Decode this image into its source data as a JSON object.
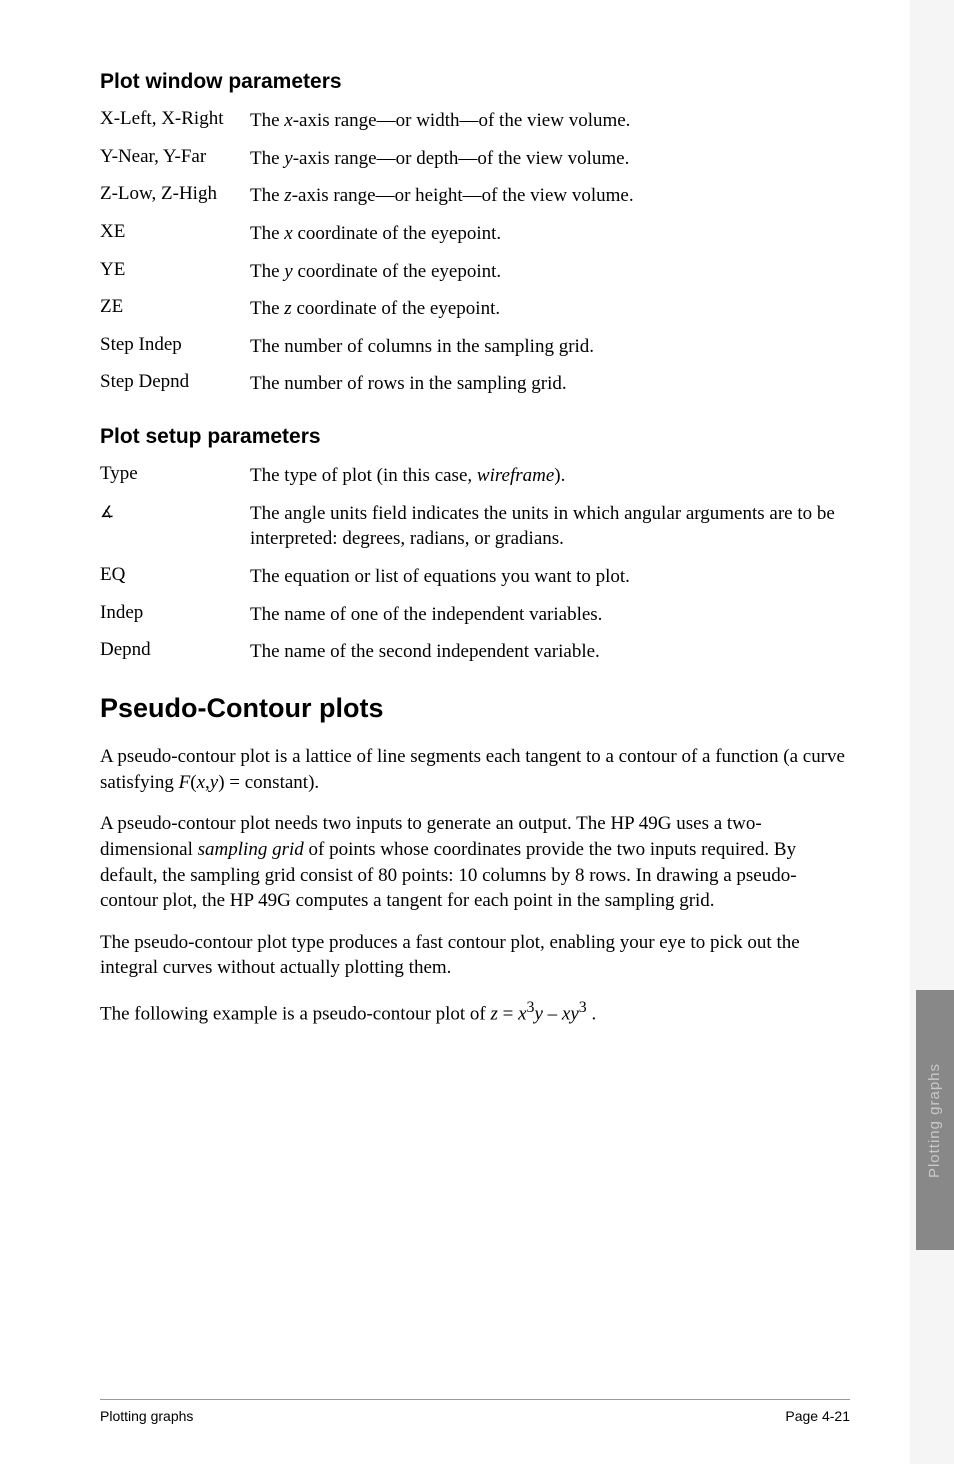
{
  "sections": {
    "plot_window": {
      "heading": "Plot window parameters",
      "items": [
        {
          "term_html": "X-Left, X-Right",
          "desc_html": "The <span class='ital'>x</span>-axis range—or width—of the view volume."
        },
        {
          "term_html": "Y-Near, Y-Far",
          "desc_html": "The <span class='ital'>y</span>-axis range—or depth—of the view volume."
        },
        {
          "term_html": "Z-Low, Z-High",
          "desc_html": "The <span class='ital'>z</span>-axis range—or height—of the view volume."
        },
        {
          "term_html": "XE",
          "desc_html": "The <span class='ital'>x</span> coordinate of the eyepoint."
        },
        {
          "term_html": "YE",
          "desc_html": "The <span class='ital'>y</span> coordinate of the eyepoint."
        },
        {
          "term_html": "ZE",
          "desc_html": "The <span class='ital'>z</span> coordinate of the eyepoint."
        },
        {
          "term_html": "Step Indep",
          "desc_html": "The number of columns in the sampling grid."
        },
        {
          "term_html": "Step Depnd",
          "desc_html": "The number of rows in the sampling grid."
        }
      ]
    },
    "plot_setup": {
      "heading": "Plot setup parameters",
      "items": [
        {
          "term_html": "Type",
          "desc_html": "The type of plot (in this case, <span class='ital'>wireframe</span>)."
        },
        {
          "term_html": "<span class='angle-icon'>∡</span>",
          "desc_html": "The angle units field indicates the units in which angular arguments are to be interpreted: degrees, radians, or gradians."
        },
        {
          "term_html": "EQ",
          "desc_html": "The equation or list of equations you want to plot."
        },
        {
          "term_html": "Indep",
          "desc_html": "The name of one of the independent variables."
        },
        {
          "term_html": "Depnd",
          "desc_html": "The name of the second independent variable."
        }
      ]
    },
    "pseudo_contour": {
      "heading": "Pseudo-Contour plots",
      "paragraphs": [
        "A pseudo-contour plot is a lattice of line segments each tangent to a contour of a function (a curve satisfying <span class='ital'>F</span>(<span class='ital'>x</span>,<span class='ital'>y</span>) = constant).",
        "A pseudo-contour plot needs two inputs to generate an output. The HP 49G uses a two-dimensional <span class='ital'>sampling grid</span> of points whose coordinates provide the two inputs required. By default, the sampling grid consist of 80 points: 10 columns by 8 rows. In drawing a pseudo-contour plot, the HP 49G computes a tangent for each point in the sampling grid.",
        "The pseudo-contour plot type produces a fast contour plot, enabling your eye to pick out the integral curves without actually plotting them.",
        "The following example is a pseudo-contour plot of <span class='ital'>z</span> = <span class='ital'>x</span><sup>3</sup><span class='ital'>y</span> – <span class='ital'>xy</span><sup>3</sup> ."
      ]
    }
  },
  "footer": {
    "left": "Plotting graphs",
    "right": "Page 4-21"
  },
  "side_tab": "Plotting graphs"
}
